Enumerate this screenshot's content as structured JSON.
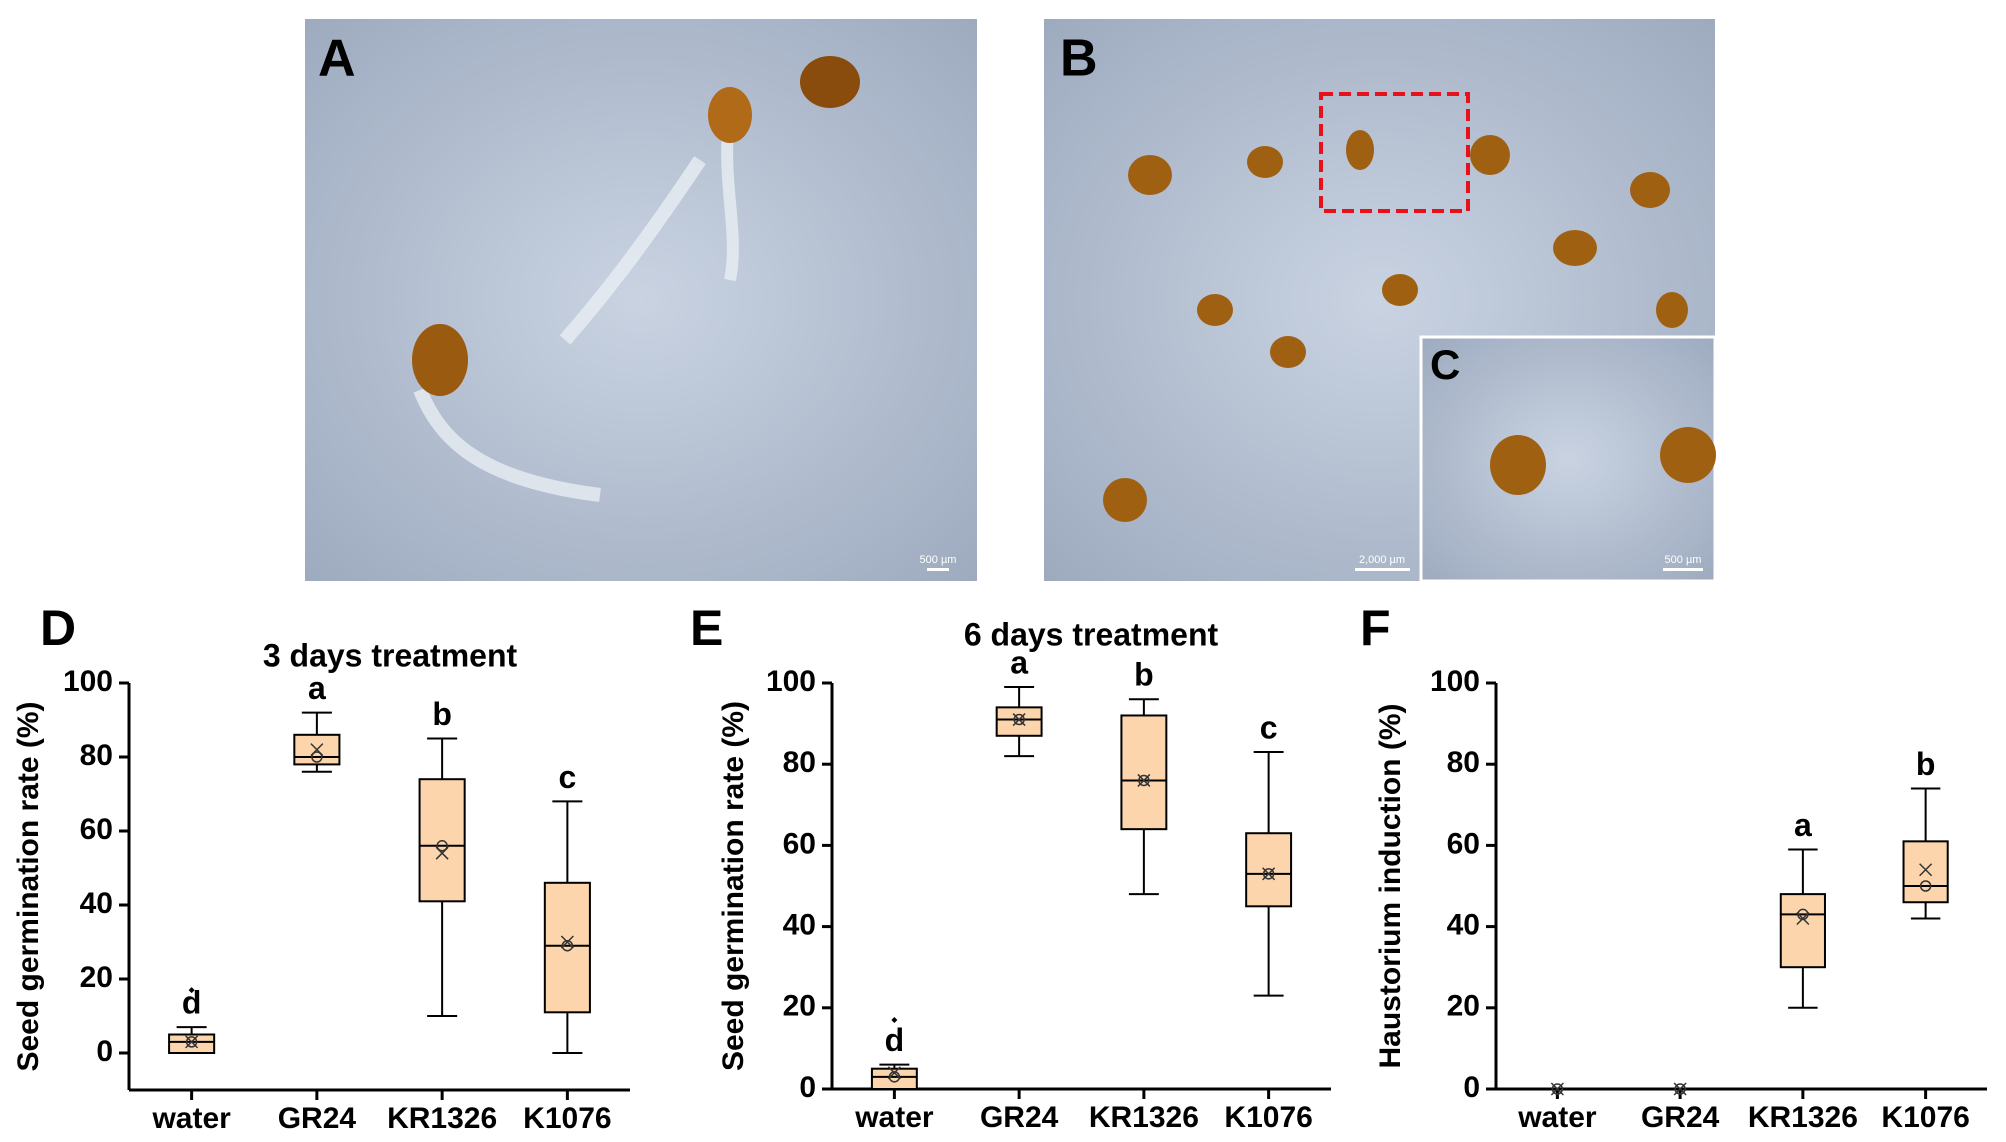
{
  "panels": [
    {
      "label": "A",
      "scale_bar": "500 µm"
    },
    {
      "label": "B",
      "scale_bar": "2,000 µm"
    },
    {
      "label": "C",
      "scale_bar": "500 µm"
    }
  ],
  "chart_data": [
    {
      "type": "box",
      "panel": "D",
      "title": "3 days treatment",
      "ylabel": "Seed germination rate (%)",
      "categories": [
        "water",
        "GR24",
        "KR1326",
        "K1076"
      ],
      "boxes": [
        {
          "min": 0,
          "q1": 0,
          "median": 3,
          "q3": 5,
          "max": 7,
          "mean": 3
        },
        {
          "min": 76,
          "q1": 78,
          "median": 80,
          "q3": 86,
          "max": 92,
          "mean": 82
        },
        {
          "min": 10,
          "q1": 41,
          "median": 56,
          "q3": 74,
          "max": 85,
          "mean": 54
        },
        {
          "min": 0,
          "q1": 11,
          "median": 29,
          "q3": 46,
          "max": 68,
          "mean": 30
        }
      ],
      "outliers": [
        [
          17
        ],
        [],
        [],
        []
      ],
      "letters": [
        "d",
        "a",
        "b",
        "c"
      ],
      "color": "#fcd5ac",
      "ylim": [
        -10,
        100
      ],
      "yticks": [
        0,
        20,
        40,
        60,
        80,
        100
      ]
    },
    {
      "type": "box",
      "panel": "E",
      "title": "6 days treatment",
      "ylabel": "Seed germination rate (%)",
      "categories": [
        "water",
        "GR24",
        "KR1326",
        "K1076"
      ],
      "boxes": [
        {
          "min": 0,
          "q1": 0,
          "median": 3,
          "q3": 5,
          "max": 6,
          "mean": 4
        },
        {
          "min": 82,
          "q1": 87,
          "median": 91,
          "q3": 94,
          "max": 99,
          "mean": 91
        },
        {
          "min": 48,
          "q1": 64,
          "median": 76,
          "q3": 92,
          "max": 96,
          "mean": 76
        },
        {
          "min": 23,
          "q1": 45,
          "median": 53,
          "q3": 63,
          "max": 83,
          "mean": 53
        }
      ],
      "outliers": [
        [
          17
        ],
        [],
        [],
        []
      ],
      "letters": [
        "d",
        "a",
        "b",
        "c"
      ],
      "color": "#fcd5ac",
      "ylim": [
        0,
        100
      ],
      "yticks": [
        0,
        20,
        40,
        60,
        80,
        100
      ]
    },
    {
      "type": "box",
      "panel": "F",
      "ylabel": "Haustorium induction (%)",
      "categories": [
        "water",
        "GR24",
        "KR1326",
        "K1076"
      ],
      "boxes": [
        {
          "min": 0,
          "q1": 0,
          "median": 0,
          "q3": 0,
          "max": 0,
          "mean": 0
        },
        {
          "min": 0,
          "q1": 0,
          "median": 0,
          "q3": 0,
          "max": 0,
          "mean": 0
        },
        {
          "min": 20,
          "q1": 30,
          "median": 43,
          "q3": 48,
          "max": 59,
          "mean": 42
        },
        {
          "min": 42,
          "q1": 46,
          "median": 50,
          "q3": 61,
          "max": 74,
          "mean": 54
        }
      ],
      "outliers": [
        [],
        [],
        [],
        []
      ],
      "letters": [
        null,
        null,
        "a",
        "b"
      ],
      "color": "#fcd5ac",
      "ylim": [
        0,
        100
      ],
      "yticks": [
        0,
        20,
        40,
        60,
        80,
        100
      ]
    }
  ]
}
